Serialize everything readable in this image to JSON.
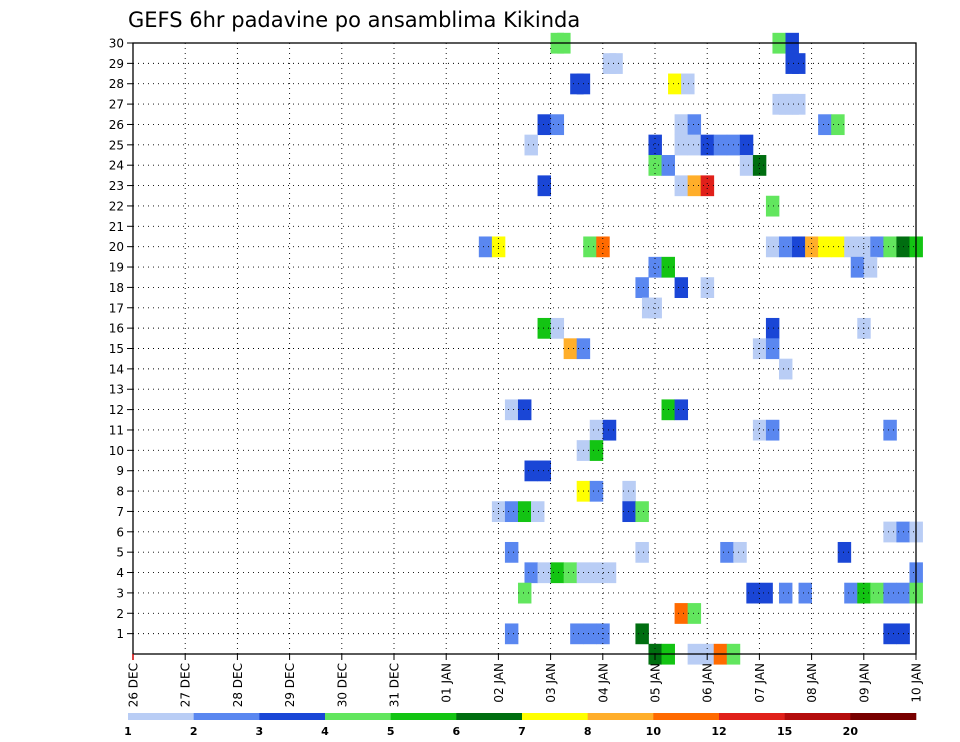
{
  "chart_data": {
    "type": "heatmap",
    "title": "GEFS 6hr padavine po ansamblima Kikinda",
    "xlabel": "",
    "ylabel": "",
    "x_ticks": [
      "26 DEC",
      "27 DEC",
      "28 DEC",
      "29 DEC",
      "30 DEC",
      "31 DEC",
      "01 JAN",
      "02 JAN",
      "03 JAN",
      "04 JAN",
      "05 JAN",
      "06 JAN",
      "07 JAN",
      "08 JAN",
      "09 JAN",
      "10 JAN"
    ],
    "y_ticks": [
      1,
      2,
      3,
      4,
      5,
      6,
      7,
      8,
      9,
      10,
      11,
      12,
      13,
      14,
      15,
      16,
      17,
      18,
      19,
      20,
      21,
      22,
      23,
      24,
      25,
      26,
      27,
      28,
      29,
      30
    ],
    "xlim_steps": [
      0,
      60
    ],
    "step_hours": 6,
    "ylim": [
      0,
      30
    ],
    "grid": true,
    "colorbar": {
      "levels": [
        "1",
        "2",
        "3",
        "4",
        "5",
        "6",
        "7",
        "8",
        "10",
        "12",
        "15",
        "20",
        ""
      ],
      "colors": [
        "#b9cdf5",
        "#5a87f0",
        "#1a46d6",
        "#62e65e",
        "#13c413",
        "#006e10",
        "#ffff00",
        "#ffae2a",
        "#ff6a00",
        "#e0201a",
        "#b40c0c",
        "#780000"
      ]
    },
    "note_units": "x = 6-hour step index from 26 DEC 00Z (step 4 = 27 DEC), y = ensemble member, c = colour class index 0-11 (0:1-2, 1:2-3, 2:3-4, 3:4-5, 4:5-6, 5:6-7, 6:7-8, 7:8-10, 8:10-12, 9:12-15, 10:15-20, 11:>20)",
    "cells": [
      [
        32.5,
        30,
        3
      ],
      [
        33,
        30,
        3
      ],
      [
        49.5,
        30,
        3
      ],
      [
        50.5,
        30,
        2
      ],
      [
        36.5,
        29,
        0
      ],
      [
        37,
        29,
        0
      ],
      [
        50.5,
        29,
        2
      ],
      [
        51,
        29,
        2
      ],
      [
        34,
        28,
        2
      ],
      [
        34.5,
        28,
        2
      ],
      [
        41.5,
        28,
        6
      ],
      [
        42.5,
        28,
        0
      ],
      [
        49.5,
        27,
        0
      ],
      [
        50,
        27,
        0
      ],
      [
        50.5,
        27,
        0
      ],
      [
        51,
        27,
        0
      ],
      [
        31.5,
        26,
        2
      ],
      [
        32.5,
        26,
        1
      ],
      [
        42,
        26,
        0
      ],
      [
        43,
        26,
        1
      ],
      [
        53,
        26,
        1
      ],
      [
        54,
        26,
        3
      ],
      [
        30.5,
        25,
        0
      ],
      [
        40,
        25,
        2
      ],
      [
        42,
        25,
        0
      ],
      [
        43,
        25,
        0
      ],
      [
        44,
        25,
        2
      ],
      [
        45,
        25,
        1
      ],
      [
        46,
        25,
        1
      ],
      [
        47,
        25,
        2
      ],
      [
        40,
        24,
        3
      ],
      [
        41,
        24,
        1
      ],
      [
        47,
        24,
        0
      ],
      [
        48,
        24,
        5
      ],
      [
        31.5,
        23,
        2
      ],
      [
        42,
        23,
        0
      ],
      [
        43,
        23,
        7
      ],
      [
        44,
        23,
        9
      ],
      [
        49,
        22,
        3
      ],
      [
        27,
        20,
        1
      ],
      [
        28,
        20,
        6
      ],
      [
        35,
        20,
        3
      ],
      [
        36,
        20,
        8
      ],
      [
        49,
        20,
        0
      ],
      [
        50,
        20,
        1
      ],
      [
        51,
        20,
        2
      ],
      [
        52,
        20,
        7
      ],
      [
        53,
        20,
        6
      ],
      [
        54,
        20,
        6
      ],
      [
        55,
        20,
        0
      ],
      [
        56,
        20,
        0
      ],
      [
        57,
        20,
        1
      ],
      [
        58,
        20,
        3
      ],
      [
        59,
        20,
        5
      ],
      [
        60,
        20,
        4
      ],
      [
        40,
        19,
        1
      ],
      [
        41,
        19,
        4
      ],
      [
        55.5,
        19,
        1
      ],
      [
        56.5,
        19,
        0
      ],
      [
        39,
        18,
        1
      ],
      [
        42,
        18,
        2
      ],
      [
        44,
        18,
        0
      ],
      [
        39.5,
        17,
        0
      ],
      [
        40,
        17,
        0
      ],
      [
        31.5,
        16,
        4
      ],
      [
        32.5,
        16,
        0
      ],
      [
        49,
        16,
        2
      ],
      [
        56,
        16,
        0
      ],
      [
        33.5,
        15,
        7
      ],
      [
        34.5,
        15,
        1
      ],
      [
        48,
        15,
        0
      ],
      [
        49,
        15,
        1
      ],
      [
        50,
        14,
        0
      ],
      [
        29,
        12,
        0
      ],
      [
        30,
        12,
        2
      ],
      [
        41,
        12,
        4
      ],
      [
        42,
        12,
        2
      ],
      [
        35.5,
        11,
        0
      ],
      [
        36.5,
        11,
        2
      ],
      [
        48,
        11,
        0
      ],
      [
        49,
        11,
        1
      ],
      [
        58,
        11,
        1
      ],
      [
        34.5,
        10,
        0
      ],
      [
        35.5,
        10,
        4
      ],
      [
        30.5,
        9,
        2
      ],
      [
        31.5,
        9,
        2
      ],
      [
        34.5,
        8,
        6
      ],
      [
        35.5,
        8,
        1
      ],
      [
        38,
        8,
        0
      ],
      [
        28,
        7,
        0
      ],
      [
        29,
        7,
        1
      ],
      [
        30,
        7,
        4
      ],
      [
        31,
        7,
        0
      ],
      [
        38,
        7,
        2
      ],
      [
        39,
        7,
        3
      ],
      [
        58,
        6,
        0
      ],
      [
        59,
        6,
        1
      ],
      [
        60,
        6,
        0
      ],
      [
        29,
        5,
        1
      ],
      [
        39,
        5,
        0
      ],
      [
        45.5,
        5,
        1
      ],
      [
        46.5,
        5,
        0
      ],
      [
        54.5,
        5,
        2
      ],
      [
        30.5,
        4,
        1
      ],
      [
        31.5,
        4,
        0
      ],
      [
        32.5,
        4,
        4
      ],
      [
        33.5,
        4,
        3
      ],
      [
        34.5,
        4,
        0
      ],
      [
        35.5,
        4,
        0
      ],
      [
        36.5,
        4,
        0
      ],
      [
        60,
        4,
        1
      ],
      [
        30,
        3,
        3
      ],
      [
        47.5,
        3,
        2
      ],
      [
        48.5,
        3,
        2
      ],
      [
        50,
        3,
        1
      ],
      [
        51.5,
        3,
        1
      ],
      [
        55,
        3,
        1
      ],
      [
        56,
        3,
        4
      ],
      [
        57,
        3,
        3
      ],
      [
        58,
        3,
        1
      ],
      [
        59,
        3,
        1
      ],
      [
        60,
        3,
        3
      ],
      [
        42,
        2,
        8
      ],
      [
        43,
        2,
        3
      ],
      [
        29,
        1,
        1
      ],
      [
        34,
        1,
        1
      ],
      [
        35,
        1,
        1
      ],
      [
        36,
        1,
        1
      ],
      [
        39,
        1,
        5
      ],
      [
        58,
        1,
        2
      ],
      [
        59,
        1,
        2
      ],
      [
        40,
        0,
        5
      ],
      [
        41,
        0,
        4
      ],
      [
        43,
        0,
        0
      ],
      [
        44,
        0,
        0
      ],
      [
        45,
        0,
        8
      ],
      [
        46,
        0,
        3
      ]
    ]
  }
}
